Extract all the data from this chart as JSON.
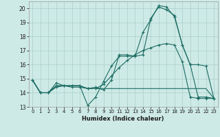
{
  "title": "",
  "xlabel": "Humidex (Indice chaleur)",
  "background_color": "#ceeae6",
  "grid_color": "#aaceca",
  "line_color": "#1a6b62",
  "xlim": [
    -0.5,
    23.5
  ],
  "ylim": [
    13,
    20.5
  ],
  "yticks": [
    13,
    14,
    15,
    16,
    17,
    18,
    19,
    20
  ],
  "xticks": [
    0,
    1,
    2,
    3,
    4,
    5,
    6,
    7,
    8,
    9,
    10,
    11,
    12,
    13,
    14,
    15,
    16,
    17,
    18,
    19,
    20,
    21,
    22,
    23
  ],
  "line1_x": [
    0,
    1,
    2,
    3,
    4,
    5,
    6,
    7,
    8,
    9,
    10,
    11,
    12,
    13,
    14,
    15,
    16,
    17,
    18,
    19,
    20,
    21,
    22,
    23
  ],
  "line1_y": [
    14.9,
    14.0,
    14.0,
    14.7,
    14.5,
    14.5,
    14.5,
    13.1,
    13.7,
    14.8,
    15.9,
    16.6,
    16.6,
    16.6,
    18.3,
    19.2,
    20.2,
    20.1,
    19.4,
    17.4,
    16.0,
    16.0,
    15.9,
    13.6
  ],
  "line2_x": [
    0,
    1,
    2,
    3,
    4,
    5,
    6,
    7,
    8,
    9,
    10,
    11,
    12,
    13,
    14,
    15,
    16,
    17,
    18,
    19,
    20,
    21,
    22,
    23
  ],
  "line2_y": [
    14.9,
    14.0,
    14.0,
    14.4,
    14.5,
    14.4,
    14.4,
    14.3,
    14.3,
    14.6,
    15.2,
    15.8,
    16.3,
    16.7,
    17.0,
    17.2,
    17.4,
    17.5,
    17.4,
    16.2,
    13.7,
    13.6,
    13.6,
    13.6
  ],
  "line3_x": [
    0,
    1,
    2,
    3,
    4,
    5,
    6,
    7,
    8,
    9,
    10,
    11,
    12,
    13,
    14,
    15,
    16,
    17,
    18,
    19,
    20,
    21,
    22,
    23
  ],
  "line3_y": [
    14.9,
    14.0,
    14.0,
    14.5,
    14.5,
    14.5,
    14.5,
    14.3,
    14.4,
    14.2,
    14.9,
    16.7,
    16.7,
    16.6,
    16.7,
    19.3,
    20.1,
    19.9,
    19.5,
    17.4,
    16.0,
    13.7,
    13.7,
    13.6
  ],
  "line4_x": [
    0,
    1,
    2,
    3,
    4,
    5,
    6,
    7,
    8,
    9,
    10,
    11,
    12,
    13,
    14,
    15,
    16,
    17,
    18,
    19,
    20,
    21,
    22,
    23
  ],
  "line4_y": [
    14.9,
    14.0,
    14.0,
    14.5,
    14.5,
    14.5,
    14.5,
    14.3,
    14.3,
    14.3,
    14.3,
    14.3,
    14.3,
    14.3,
    14.3,
    14.3,
    14.3,
    14.3,
    14.3,
    14.3,
    14.3,
    14.3,
    14.3,
    13.6
  ]
}
